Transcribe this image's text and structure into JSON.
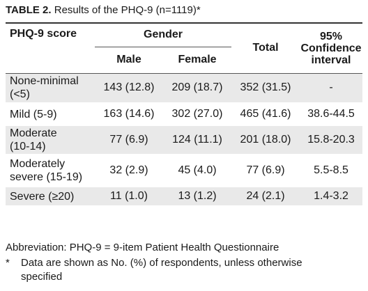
{
  "caption": {
    "label": "TABLE 2.",
    "text": "Results of the PHQ-9 (n=1119)*"
  },
  "header": {
    "score": "PHQ-9 score",
    "gender": "Gender",
    "male": "Male",
    "female": "Female",
    "total": "Total",
    "ci_line1": "95%",
    "ci_line2": "Confidence",
    "ci_line3": "interval"
  },
  "rows": [
    {
      "label1": "None-minimal",
      "label2": "(<5)",
      "male": "143 (12.8)",
      "female": "209 (18.7)",
      "total": "352 (31.5)",
      "ci": "-"
    },
    {
      "label1": "Mild (5-9)",
      "label2": "",
      "male": "163 (14.6)",
      "female": "302 (27.0)",
      "total": "465 (41.6)",
      "ci": "38.6-44.5"
    },
    {
      "label1": "Moderate",
      "label2": "(10-14)",
      "male": "77 (6.9)",
      "female": "124 (11.1)",
      "total": "201 (18.0)",
      "ci": "15.8-20.3"
    },
    {
      "label1": "Moderately",
      "label2": "severe (15-19)",
      "male": "32 (2.9)",
      "female": "45 (4.0)",
      "total": "77 (6.9)",
      "ci": "5.5-8.5"
    },
    {
      "label1": "Severe (≥20)",
      "label2": "",
      "male": "11 (1.0)",
      "female": "13 (1.2)",
      "total": "24 (2.1)",
      "ci": "1.4-3.2"
    }
  ],
  "notes": {
    "abbreviation": "Abbreviation: PHQ-9 = 9-item Patient Health Questionnaire",
    "star": "*",
    "footnote_line1": "Data are shown as No. (%) of respondents, unless otherwise",
    "footnote_line2": "specified"
  }
}
